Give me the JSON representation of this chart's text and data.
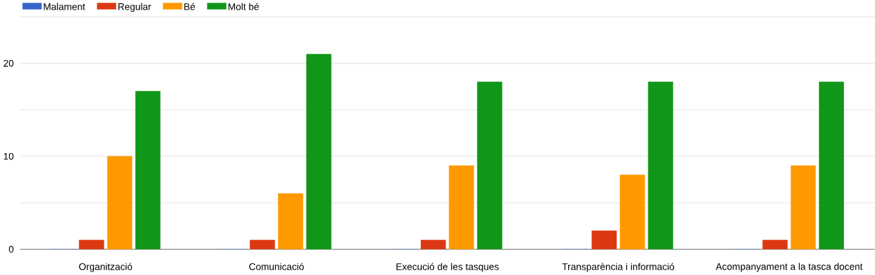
{
  "chart_data": {
    "type": "bar",
    "categories": [
      "Organització",
      "Comunicació",
      "Execució de les tasques",
      "Transparència i informació",
      "Acompanyament a la tasca docent"
    ],
    "series": [
      {
        "name": "Malament",
        "color": "#3366cc",
        "values": [
          0,
          0,
          0,
          0,
          0
        ]
      },
      {
        "name": "Regular",
        "color": "#dc3912",
        "values": [
          1,
          1,
          1,
          2,
          1
        ]
      },
      {
        "name": "Bé",
        "color": "#ff9900",
        "values": [
          10,
          6,
          9,
          8,
          9
        ]
      },
      {
        "name": "Molt bé",
        "color": "#109618",
        "values": [
          17,
          21,
          18,
          18,
          18
        ]
      }
    ],
    "ylim": [
      0,
      25
    ],
    "yticks": [
      0,
      {
        "value": 5,
        "label": null
      },
      10,
      {
        "value": 15,
        "label": null
      },
      20,
      {
        "value": 25,
        "label": null
      }
    ],
    "grid": "y",
    "legend": "top left"
  }
}
